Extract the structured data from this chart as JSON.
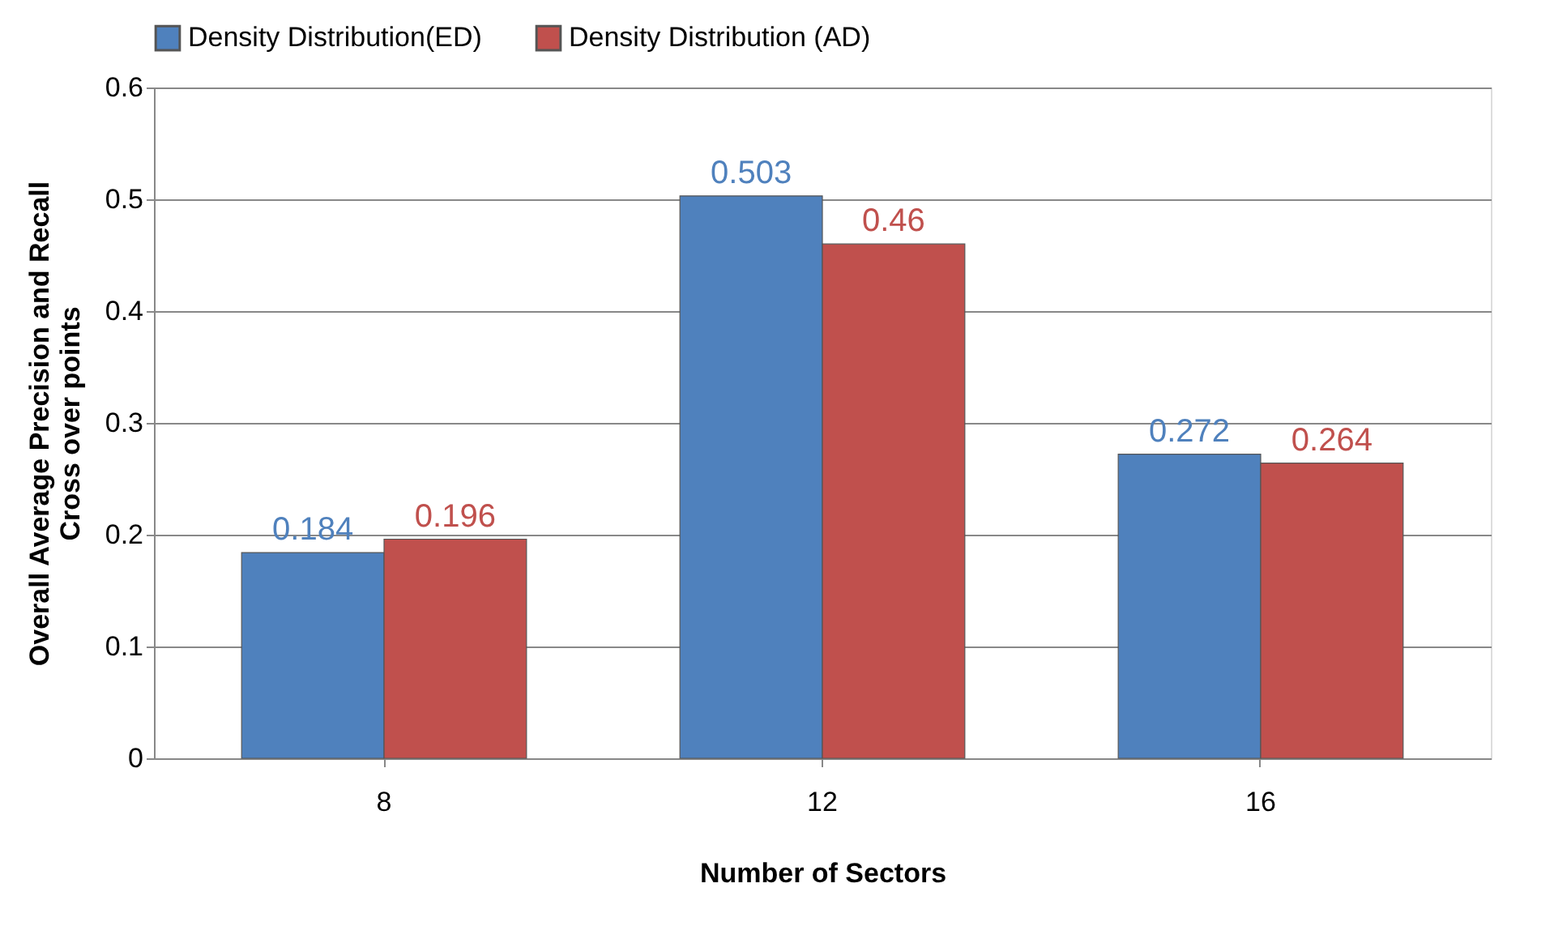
{
  "chart_data": {
    "type": "bar",
    "xlabel": "Number of Sectors",
    "ylabel": "Overall Average Precision and Recall\nCross over points",
    "categories": [
      "8",
      "12",
      "16"
    ],
    "series": [
      {
        "name": "Density Distribution(ED)",
        "color": "#4f81bd",
        "values": [
          0.184,
          0.503,
          0.272
        ]
      },
      {
        "name": "Density Distribution (AD)",
        "color": "#c0504d",
        "values": [
          0.196,
          0.46,
          0.264
        ]
      }
    ],
    "ylim": [
      0,
      0.6
    ],
    "yticks": [
      0,
      0.1,
      0.2,
      0.3,
      0.4,
      0.5,
      0.6
    ],
    "grid": "y",
    "legend": "top",
    "data_labels": true
  }
}
